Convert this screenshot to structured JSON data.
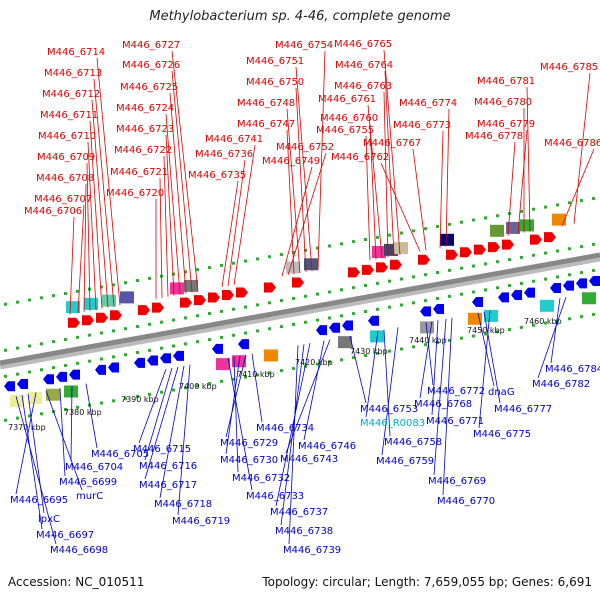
{
  "header": {
    "title": "Methylobacterium sp. 4-46, complete genome"
  },
  "footer": {
    "accession": "Accession: NC_010511",
    "summary": "Topology: circular; Length: 7,659,055 bp; Genes: 6,691"
  },
  "colors": {
    "forward_label": "#dd0000",
    "reverse_label": "#0000cc",
    "rna_label": "#00aacc"
  },
  "ticks": [
    "7370 kbp",
    "7380 kbp",
    "7390 kbp",
    "7400 kbp",
    "7410 kbp",
    "7420 kbp",
    "7430 kbp",
    "7440 kbp",
    "7450 kbp",
    "7460 kbp"
  ],
  "forward_labels": [
    "M446_6714",
    "M446_6713",
    "M446_6712",
    "M446_6711",
    "M446_6710",
    "M446_6709",
    "M446_6708",
    "M446_6707",
    "M446_6706",
    "M446_6727",
    "M446_6726",
    "M446_6725",
    "M446_6724",
    "M446_6723",
    "M446_6722",
    "M446_6721",
    "M446_6720",
    "M446_6754",
    "M446_6751",
    "M446_6750",
    "M446_6748",
    "M446_6747",
    "M446_6741",
    "M446_6736",
    "M446_6735",
    "M446_6752",
    "M446_6749",
    "M446_6765",
    "M446_6764",
    "M446_6763",
    "M446_6761",
    "M446_6760",
    "M446_6755",
    "M446_6767",
    "M446_6762",
    "M446_6774",
    "M446_6773",
    "M446_6785",
    "M446_6781",
    "M446_6780",
    "M446_6779",
    "M446_6778",
    "M446_6786"
  ],
  "reverse_labels": [
    "M446_6705",
    "M446_6704",
    "M446_6699",
    "murC",
    "M446_6695",
    "lpxC",
    "M446_6697",
    "M446_6698",
    "M446_6715",
    "M446_6716",
    "M446_6717",
    "M446_6718",
    "M446_6719",
    "M446_6734",
    "M446_6729",
    "M446_6730",
    "M446_6732",
    "M446_6733",
    "M446_6737",
    "M446_6738",
    "M446_6739",
    "M446_6746",
    "M446_6743",
    "M446_6753",
    "M446_R0083",
    "M446_6758",
    "M446_6759",
    "M446_6772",
    "M446_6768",
    "M446_6771",
    "M446_6769",
    "M446_6770",
    "dnaG",
    "M446_6777",
    "M446_6775",
    "M446_6784",
    "M446_6782"
  ]
}
